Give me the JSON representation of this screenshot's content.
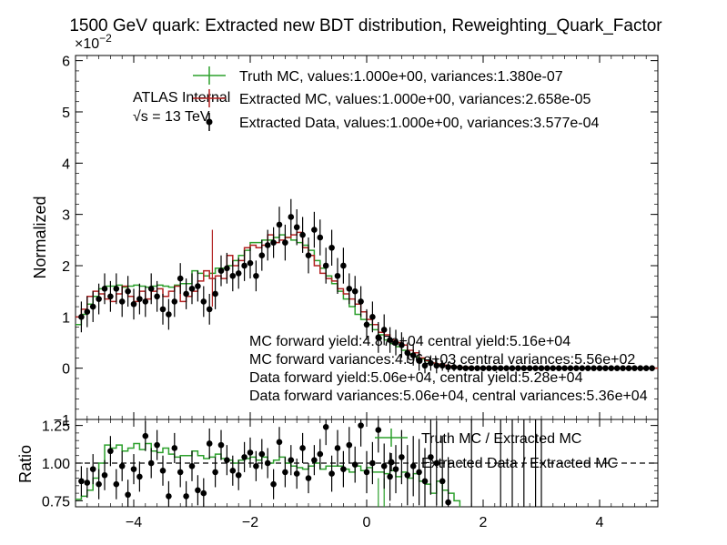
{
  "chart_data": [
    {
      "type": "histogram",
      "panel": "main",
      "title": "1500 GeV quark: Extracted new BDT distribution, Reweighting_Quark_Factor",
      "ylabel": "Normalized",
      "y_scale_label": "×10",
      "y_scale_exponent": "−2",
      "xlim": [
        -5,
        5
      ],
      "ylim": [
        -1,
        6.1
      ],
      "yticks": [
        "−1",
        "0",
        "1",
        "2",
        "3",
        "4",
        "5",
        "6"
      ],
      "atlas_label": "ATLAS Internal",
      "energy_label": "√s = 13 TeV",
      "legend_position": "top-right",
      "annotations": [
        "MC forward yield:4.87e+04 central yield:5.16e+04",
        "MC forward variances:4.96e+03 central variances:5.56e+02",
        "Data forward yield:5.06e+04, central yield:5.28e+04",
        "Data forward variances:5.06e+04, central variances:5.36e+04"
      ],
      "bin_edges": [
        -5.0,
        -4.9,
        -4.8,
        -4.7,
        -4.6,
        -4.5,
        -4.4,
        -4.3,
        -4.2,
        -4.1,
        -4.0,
        -3.9,
        -3.8,
        -3.7,
        -3.6,
        -3.5,
        -3.4,
        -3.3,
        -3.2,
        -3.1,
        -3.0,
        -2.9,
        -2.8,
        -2.7,
        -2.6,
        -2.5,
        -2.4,
        -2.3,
        -2.2,
        -2.1,
        -2.0,
        -1.9,
        -1.8,
        -1.7,
        -1.6,
        -1.5,
        -1.4,
        -1.3,
        -1.2,
        -1.1,
        -1.0,
        -0.9,
        -0.8,
        -0.7,
        -0.6,
        -0.5,
        -0.4,
        -0.3,
        -0.2,
        -0.1,
        0.0,
        0.1,
        0.2,
        0.3,
        0.4,
        0.5,
        0.6,
        0.7,
        0.8,
        0.9,
        1.0,
        1.1,
        1.2,
        1.3,
        1.4,
        1.5,
        1.6,
        1.7,
        1.8,
        1.9,
        2.0,
        2.1,
        2.2,
        2.3,
        2.4,
        2.5,
        2.6,
        2.7,
        2.8,
        2.9,
        3.0,
        3.1,
        3.2,
        3.3,
        3.4,
        3.5,
        3.6,
        3.7,
        3.8,
        3.9,
        4.0,
        4.1,
        4.2,
        4.3,
        4.4,
        4.5,
        4.6,
        4.7,
        4.8,
        4.9,
        5.0
      ],
      "series": [
        {
          "name": "Truth MC, values:1.000e+00, variances:1.380e-07",
          "style": "step",
          "color": "#2ca02c",
          "values": [
            0.85,
            1.05,
            1.25,
            1.4,
            1.55,
            1.6,
            1.6,
            1.62,
            1.58,
            1.6,
            1.62,
            1.6,
            1.58,
            1.6,
            1.62,
            1.6,
            1.58,
            1.62,
            1.65,
            1.65,
            1.9,
            1.85,
            1.8,
            1.85,
            1.95,
            1.95,
            2.0,
            2.1,
            2.2,
            2.3,
            2.45,
            2.45,
            2.5,
            2.5,
            2.55,
            2.6,
            2.55,
            2.5,
            2.45,
            2.4,
            2.3,
            2.1,
            1.95,
            1.8,
            1.65,
            1.5,
            1.35,
            1.2,
            1.05,
            0.95,
            0.85,
            0.75,
            0.65,
            0.55,
            0.48,
            0.42,
            0.35,
            0.28,
            0.22,
            0.18,
            0.14,
            0.1,
            0.08,
            0.06,
            0.04,
            0.03,
            0.02,
            0.02,
            0.01,
            0.01,
            0.01,
            0.0,
            0.0,
            0.0,
            0.0,
            0.0,
            0.0,
            0.0,
            0.0,
            0.0,
            0.0,
            0.0,
            0.0,
            0.0,
            0.0,
            0.0,
            0.0,
            0.0,
            0.0,
            0.0,
            0.0,
            0.0,
            0.0,
            0.0,
            0.0,
            0.0,
            0.0,
            0.0,
            0.0,
            0.0
          ]
        },
        {
          "name": "Extracted MC, values:1.000e+00, variances:2.658e-05",
          "style": "step-errors",
          "color": "#b22222",
          "values": [
            1.0,
            1.15,
            1.4,
            1.5,
            1.45,
            1.35,
            1.3,
            1.45,
            1.6,
            1.4,
            1.3,
            1.5,
            1.35,
            1.5,
            1.55,
            1.4,
            1.5,
            1.6,
            1.3,
            1.4,
            1.5,
            1.7,
            1.9,
            1.75,
            1.8,
            1.75,
            2.2,
            2.0,
            2.1,
            2.35,
            2.4,
            2.35,
            2.4,
            2.6,
            2.45,
            2.5,
            2.55,
            2.6,
            2.65,
            2.35,
            2.2,
            2.0,
            1.85,
            1.75,
            1.7,
            1.55,
            1.45,
            1.35,
            1.25,
            1.1,
            0.95,
            0.85,
            0.7,
            0.65,
            0.55,
            0.5,
            0.45,
            0.35,
            0.3,
            0.2,
            0.15,
            0.1,
            0.08,
            0.06,
            0.04,
            0.03,
            0.02,
            0.02,
            0.01,
            0.01,
            0.01,
            0.0,
            0.0,
            0.0,
            0.0,
            0.0,
            0.0,
            0.0,
            0.0,
            0.0,
            0.0,
            0.0,
            0.0,
            0.0,
            0.0,
            0.0,
            0.0,
            0.0,
            0.0,
            0.0,
            0.0,
            0.0,
            0.0,
            0.0,
            0.0,
            0.0,
            0.0,
            0.0,
            0.0,
            0.0
          ]
        },
        {
          "name": "Extracted Data, values:1.000e+00, variances:3.577e-04",
          "style": "points",
          "color": "#000000",
          "x": [
            -4.9,
            -4.8,
            -4.7,
            -4.6,
            -4.5,
            -4.4,
            -4.3,
            -4.2,
            -4.1,
            -4.0,
            -3.9,
            -3.8,
            -3.7,
            -3.6,
            -3.5,
            -3.4,
            -3.3,
            -3.2,
            -3.1,
            -3.0,
            -2.9,
            -2.8,
            -2.7,
            -2.6,
            -2.5,
            -2.4,
            -2.3,
            -2.2,
            -2.1,
            -2.0,
            -1.9,
            -1.8,
            -1.7,
            -1.6,
            -1.5,
            -1.4,
            -1.3,
            -1.2,
            -1.1,
            -1.0,
            -0.9,
            -0.8,
            -0.7,
            -0.6,
            -0.5,
            -0.4,
            -0.3,
            -0.2,
            -0.1,
            0.0,
            0.1,
            0.2,
            0.3,
            0.4,
            0.5,
            0.6,
            0.7,
            0.8,
            0.9,
            1.0,
            1.1,
            1.2,
            1.3,
            1.4,
            1.5,
            1.6,
            1.7,
            1.8,
            1.9,
            2.0,
            2.1,
            2.2,
            2.3,
            2.4,
            2.5,
            2.6,
            2.7,
            2.8,
            2.9,
            3.0,
            3.1,
            3.2,
            3.3,
            3.4,
            3.5,
            3.6,
            3.7,
            3.8,
            3.9,
            4.0,
            4.1,
            4.2,
            4.3,
            4.4,
            4.5,
            4.6,
            4.7,
            4.8,
            4.9
          ],
          "y": [
            1.0,
            1.1,
            1.2,
            1.35,
            1.55,
            1.4,
            1.55,
            1.3,
            1.5,
            1.25,
            1.35,
            1.3,
            1.55,
            1.4,
            1.15,
            1.05,
            1.3,
            1.75,
            1.45,
            1.55,
            1.6,
            1.3,
            1.15,
            1.45,
            1.9,
            1.95,
            1.8,
            1.85,
            2.0,
            2.05,
            1.8,
            2.2,
            2.4,
            2.45,
            2.8,
            2.45,
            2.95,
            2.75,
            2.6,
            2.2,
            2.7,
            2.55,
            2.0,
            2.35,
            1.8,
            2.0,
            1.55,
            1.5,
            1.3,
            0.85,
            1.0,
            0.6,
            0.75,
            0.55,
            0.5,
            0.45,
            0.3,
            0.25,
            0.15,
            0.05,
            0.1,
            0.05,
            0.05,
            0.02,
            0.02,
            0.01,
            0.0,
            0.0,
            0.0,
            0.0,
            0.0,
            0.0,
            0.0,
            0.0,
            0.0,
            0.0,
            0.0,
            0.0,
            0.0,
            0.0,
            0.0,
            0.0,
            0.0,
            0.0,
            0.0,
            0.0,
            0.0,
            0.0,
            0.0,
            0.0,
            0.0,
            0.0,
            0.0,
            0.0,
            0.0,
            0.0,
            0.0,
            0.0,
            0.0
          ],
          "errors": [
            0.3,
            0.3,
            0.3,
            0.3,
            0.3,
            0.3,
            0.3,
            0.3,
            0.3,
            0.3,
            0.3,
            0.3,
            0.3,
            0.3,
            0.3,
            0.3,
            0.3,
            0.3,
            0.3,
            0.3,
            0.3,
            0.3,
            0.3,
            0.3,
            0.3,
            0.3,
            0.3,
            0.3,
            0.3,
            0.3,
            0.3,
            0.3,
            0.3,
            0.3,
            0.35,
            0.35,
            0.35,
            0.35,
            0.35,
            0.35,
            0.35,
            0.35,
            0.35,
            0.35,
            0.35,
            0.35,
            0.3,
            0.3,
            0.3,
            0.3,
            0.3,
            0.3,
            0.3,
            0.25,
            0.25,
            0.25,
            0.2,
            0.2,
            0.2,
            0.15,
            0.15,
            0.15,
            0.1,
            0.1,
            0.08,
            0.06,
            0.05,
            0.04,
            0.03,
            0.02,
            0.02,
            0.02,
            0.02,
            0.02,
            0.02,
            0.02,
            0.02,
            0.02,
            0.02,
            0.02,
            0.02,
            0.02,
            0.02,
            0.02,
            0.02,
            0.02,
            0.02,
            0.02,
            0.02,
            0.02,
            0.02,
            0.02,
            0.02,
            0.02,
            0.02,
            0.02,
            0.02,
            0.02,
            0.02
          ]
        }
      ]
    },
    {
      "type": "ratio",
      "panel": "ratio",
      "xlabel": "",
      "ylabel": "Ratio",
      "xlim": [
        -5,
        5
      ],
      "ylim": [
        0.71,
        1.29
      ],
      "yticks": [
        "0.75",
        "1.00",
        "1.25"
      ],
      "xticks": [
        "−4",
        "−2",
        "0",
        "2",
        "4"
      ],
      "reference_line": 1.0,
      "legend_position": "top-right",
      "series": [
        {
          "name": "Truth MC / Extracted MC",
          "style": "step",
          "color": "#2ca02c",
          "values": [
            0.76,
            0.78,
            0.82,
            0.9,
            1.0,
            1.12,
            1.1,
            1.12,
            1.08,
            1.1,
            1.13,
            1.09,
            1.13,
            1.08,
            1.07,
            1.1,
            1.06,
            1.04,
            1.05,
            1.05,
            1.08,
            1.05,
            1.03,
            1.04,
            1.06,
            1.03,
            1.02,
            1.0,
            1.02,
            1.03,
            1.04,
            1.02,
            1.04,
            1.0,
            1.02,
            1.04,
            1.0,
            0.98,
            0.97,
            0.96,
            0.98,
            1.0,
            0.96,
            0.98,
            0.98,
            0.98,
            0.96,
            0.94,
            0.98,
            0.95,
            0.97,
            0.94,
            0.94,
            0.93,
            0.95,
            0.91,
            0.94,
            0.9,
            0.93,
            0.88,
            0.86,
            0.8,
            0.88,
            0.82,
            0.8,
            0.75
          ]
        },
        {
          "name": "Extracted Data / Extracted MC",
          "style": "points",
          "color": "#000000",
          "x": [
            -4.9,
            -4.8,
            -4.7,
            -4.6,
            -4.5,
            -4.4,
            -4.3,
            -4.2,
            -4.1,
            -4.0,
            -3.9,
            -3.8,
            -3.7,
            -3.6,
            -3.5,
            -3.4,
            -3.3,
            -3.2,
            -3.1,
            -3.0,
            -2.9,
            -2.8,
            -2.7,
            -2.6,
            -2.5,
            -2.4,
            -2.3,
            -2.2,
            -2.1,
            -2.0,
            -1.9,
            -1.8,
            -1.7,
            -1.6,
            -1.5,
            -1.4,
            -1.3,
            -1.2,
            -1.1,
            -1.0,
            -0.9,
            -0.8,
            -0.7,
            -0.6,
            -0.5,
            -0.4,
            -0.3,
            -0.2,
            -0.1,
            0.0,
            0.1,
            0.2,
            0.3,
            0.4,
            0.5,
            0.6,
            0.7,
            0.8,
            0.9,
            1.0,
            1.1,
            1.2,
            1.3,
            1.4
          ],
          "y": [
            0.88,
            0.87,
            0.96,
            0.86,
            0.92,
            1.08,
            0.86,
            0.98,
            0.79,
            0.96,
            0.91,
            1.18,
            1.0,
            1.12,
            0.95,
            0.78,
            1.1,
            0.94,
            0.78,
            0.98,
            0.82,
            0.8,
            1.13,
            0.94,
            1.12,
            1.02,
            0.95,
            0.92,
            1.04,
            1.07,
            0.98,
            1.06,
            1.0,
            0.86,
            1.14,
            0.94,
            1.02,
            0.93,
            1.1,
            0.9,
            1.02,
            1.06,
            1.24,
            0.93,
            1.1,
            0.96,
            1.12,
            0.99,
            1.25,
            0.94,
            1.0,
            1.22,
            0.98,
            0.91,
            0.96,
            1.04,
            0.92,
            0.98,
            0.94,
            0.88,
            1.04,
            1.0,
            0.88,
            0.74
          ],
          "errors": [
            0.1,
            0.1,
            0.1,
            0.1,
            0.1,
            0.1,
            0.1,
            0.1,
            0.1,
            0.1,
            0.1,
            0.1,
            0.1,
            0.1,
            0.1,
            0.1,
            0.1,
            0.1,
            0.1,
            0.1,
            0.1,
            0.1,
            0.1,
            0.1,
            0.1,
            0.1,
            0.1,
            0.1,
            0.1,
            0.1,
            0.1,
            0.1,
            0.1,
            0.1,
            0.1,
            0.1,
            0.1,
            0.1,
            0.1,
            0.1,
            0.1,
            0.1,
            0.12,
            0.12,
            0.12,
            0.12,
            0.12,
            0.12,
            0.14,
            0.14,
            0.14,
            0.15,
            0.15,
            0.16,
            0.16,
            0.18,
            0.2,
            0.2,
            0.22,
            0.22,
            0.25,
            0.28,
            0.3,
            0.3
          ]
        }
      ],
      "extra_error_bars_x": [
        1.8,
        2.3,
        2.5,
        2.7,
        2.9,
        3.0
      ]
    }
  ]
}
